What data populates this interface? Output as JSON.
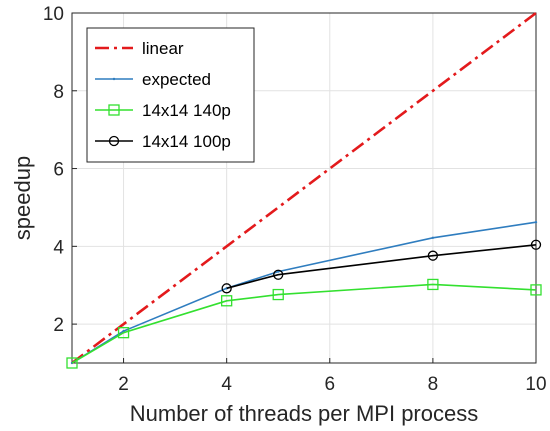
{
  "chart_data": {
    "type": "line",
    "xlabel": "Number of threads per MPI process",
    "ylabel": "speedup",
    "xlim": [
      1,
      10
    ],
    "ylim": [
      1,
      10
    ],
    "x_ticks": [
      2,
      4,
      6,
      8,
      10
    ],
    "y_ticks": [
      2,
      4,
      6,
      8,
      10
    ],
    "grid": true,
    "legend_position": "top-left",
    "series": [
      {
        "name": "linear",
        "x": [
          1,
          10
        ],
        "y": [
          1,
          10
        ],
        "color": "#e31a1c",
        "line_style": "dash-dot",
        "marker": "none"
      },
      {
        "name": "expected",
        "x": [
          1,
          2,
          4,
          5,
          8,
          10
        ],
        "y": [
          1,
          1.82,
          2.92,
          3.35,
          4.22,
          4.62
        ],
        "color": "#2f7dbf",
        "line_style": "solid",
        "marker": "dot"
      },
      {
        "name": "14x14 140p",
        "x": [
          1,
          2,
          4,
          5,
          8,
          10
        ],
        "y": [
          1,
          1.78,
          2.6,
          2.76,
          3.02,
          2.88
        ],
        "color": "#33e02f",
        "line_style": "solid",
        "marker": "square"
      },
      {
        "name": "14x14 100p",
        "x": [
          4,
          5,
          8,
          10
        ],
        "y": [
          2.92,
          3.27,
          3.76,
          4.04
        ],
        "color": "#000000",
        "line_style": "solid",
        "marker": "circle"
      }
    ]
  }
}
